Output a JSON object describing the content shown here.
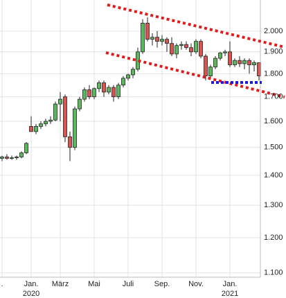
{
  "chart_data": {
    "type": "candlestick",
    "categories": [
      ".",
      null,
      null,
      null,
      null,
      null,
      "Jan.",
      null,
      null,
      null,
      null,
      null,
      "März",
      null,
      null,
      null,
      null,
      null,
      null,
      "Mai",
      null,
      null,
      null,
      null,
      null,
      null,
      "Juli",
      null,
      null,
      null,
      null,
      null,
      null,
      "Sep.",
      null,
      null,
      null,
      null,
      null,
      null,
      "Nov.",
      null,
      null,
      null,
      null,
      null,
      null,
      "Jan.",
      null,
      null,
      null,
      null,
      null,
      null
    ],
    "category_years": [
      null,
      null,
      null,
      null,
      null,
      null,
      "2020",
      null,
      null,
      null,
      null,
      null,
      null,
      null,
      null,
      null,
      null,
      null,
      null,
      null,
      null,
      null,
      null,
      null,
      null,
      null,
      null,
      null,
      null,
      null,
      null,
      null,
      null,
      null,
      null,
      null,
      null,
      null,
      null,
      null,
      null,
      null,
      null,
      null,
      null,
      null,
      null,
      "2021",
      null,
      null,
      null,
      null,
      null,
      null
    ],
    "open": [
      1460,
      1465,
      1460,
      1462,
      1465,
      1480,
      1580,
      1560,
      1580,
      1590,
      1600,
      1605,
      1670,
      1700,
      1540,
      1500,
      1650,
      1690,
      1730,
      1700,
      1735,
      1760,
      1720,
      1740,
      1700,
      1750,
      1780,
      1795,
      1820,
      1900,
      2040,
      1960,
      1970,
      1950,
      1960,
      1940,
      1890,
      1930,
      1935,
      1920,
      1900,
      1950,
      1880,
      1790,
      1830,
      1870,
      1895,
      1900,
      1840,
      1860,
      1845,
      1860,
      1840,
      1850
    ],
    "high": [
      1470,
      1475,
      1470,
      1470,
      1485,
      1520,
      1620,
      1590,
      1600,
      1610,
      1620,
      1680,
      1720,
      1710,
      1560,
      1660,
      1700,
      1740,
      1750,
      1740,
      1770,
      1770,
      1750,
      1750,
      1760,
      1790,
      1800,
      1830,
      1920,
      2060,
      2070,
      1990,
      2000,
      1980,
      1970,
      1970,
      1940,
      1950,
      1950,
      1940,
      1960,
      1960,
      1890,
      1840,
      1880,
      1900,
      1910,
      1950,
      1870,
      1880,
      1870,
      1870,
      1860,
      1850
    ],
    "low": [
      1450,
      1455,
      1455,
      1455,
      1460,
      1475,
      1560,
      1550,
      1570,
      1580,
      1590,
      1600,
      1600,
      1520,
      1450,
      1490,
      1640,
      1680,
      1690,
      1690,
      1720,
      1700,
      1710,
      1680,
      1690,
      1740,
      1770,
      1780,
      1810,
      1890,
      1950,
      1930,
      1920,
      1930,
      1900,
      1880,
      1870,
      1910,
      1910,
      1880,
      1890,
      1870,
      1770,
      1780,
      1820,
      1860,
      1880,
      1830,
      1830,
      1830,
      1820,
      1800,
      1810,
      1770
    ],
    "close": [
      1465,
      1460,
      1462,
      1465,
      1480,
      1515,
      1560,
      1580,
      1590,
      1600,
      1605,
      1670,
      1690,
      1540,
      1500,
      1650,
      1690,
      1730,
      1700,
      1735,
      1760,
      1720,
      1740,
      1700,
      1750,
      1780,
      1795,
      1820,
      1900,
      2040,
      1960,
      1970,
      1950,
      1960,
      1940,
      1890,
      1930,
      1935,
      1920,
      1900,
      1950,
      1880,
      1790,
      1830,
      1870,
      1895,
      1900,
      1840,
      1860,
      1845,
      1860,
      1840,
      1850,
      1790
    ],
    "up_color": "#5cb85c",
    "down_color": "#d9534f",
    "log_scale": true,
    "grid": true,
    "ylim": [
      1088,
      2160
    ],
    "yticks": [
      {
        "value": 1100,
        "label": "1.100"
      },
      {
        "value": 1200,
        "label": "1.200"
      },
      {
        "value": 1300,
        "label": "1.300"
      },
      {
        "value": 1400,
        "label": "1.400"
      },
      {
        "value": 1500,
        "label": "1.500"
      },
      {
        "value": 1600,
        "label": "1.600"
      },
      {
        "value": 1700,
        "label": "1.700"
      },
      {
        "value": 1800,
        "label": "1.800"
      },
      {
        "value": 1900,
        "label": "1.900"
      },
      {
        "value": 2000,
        "label": "2.000"
      }
    ]
  }
}
